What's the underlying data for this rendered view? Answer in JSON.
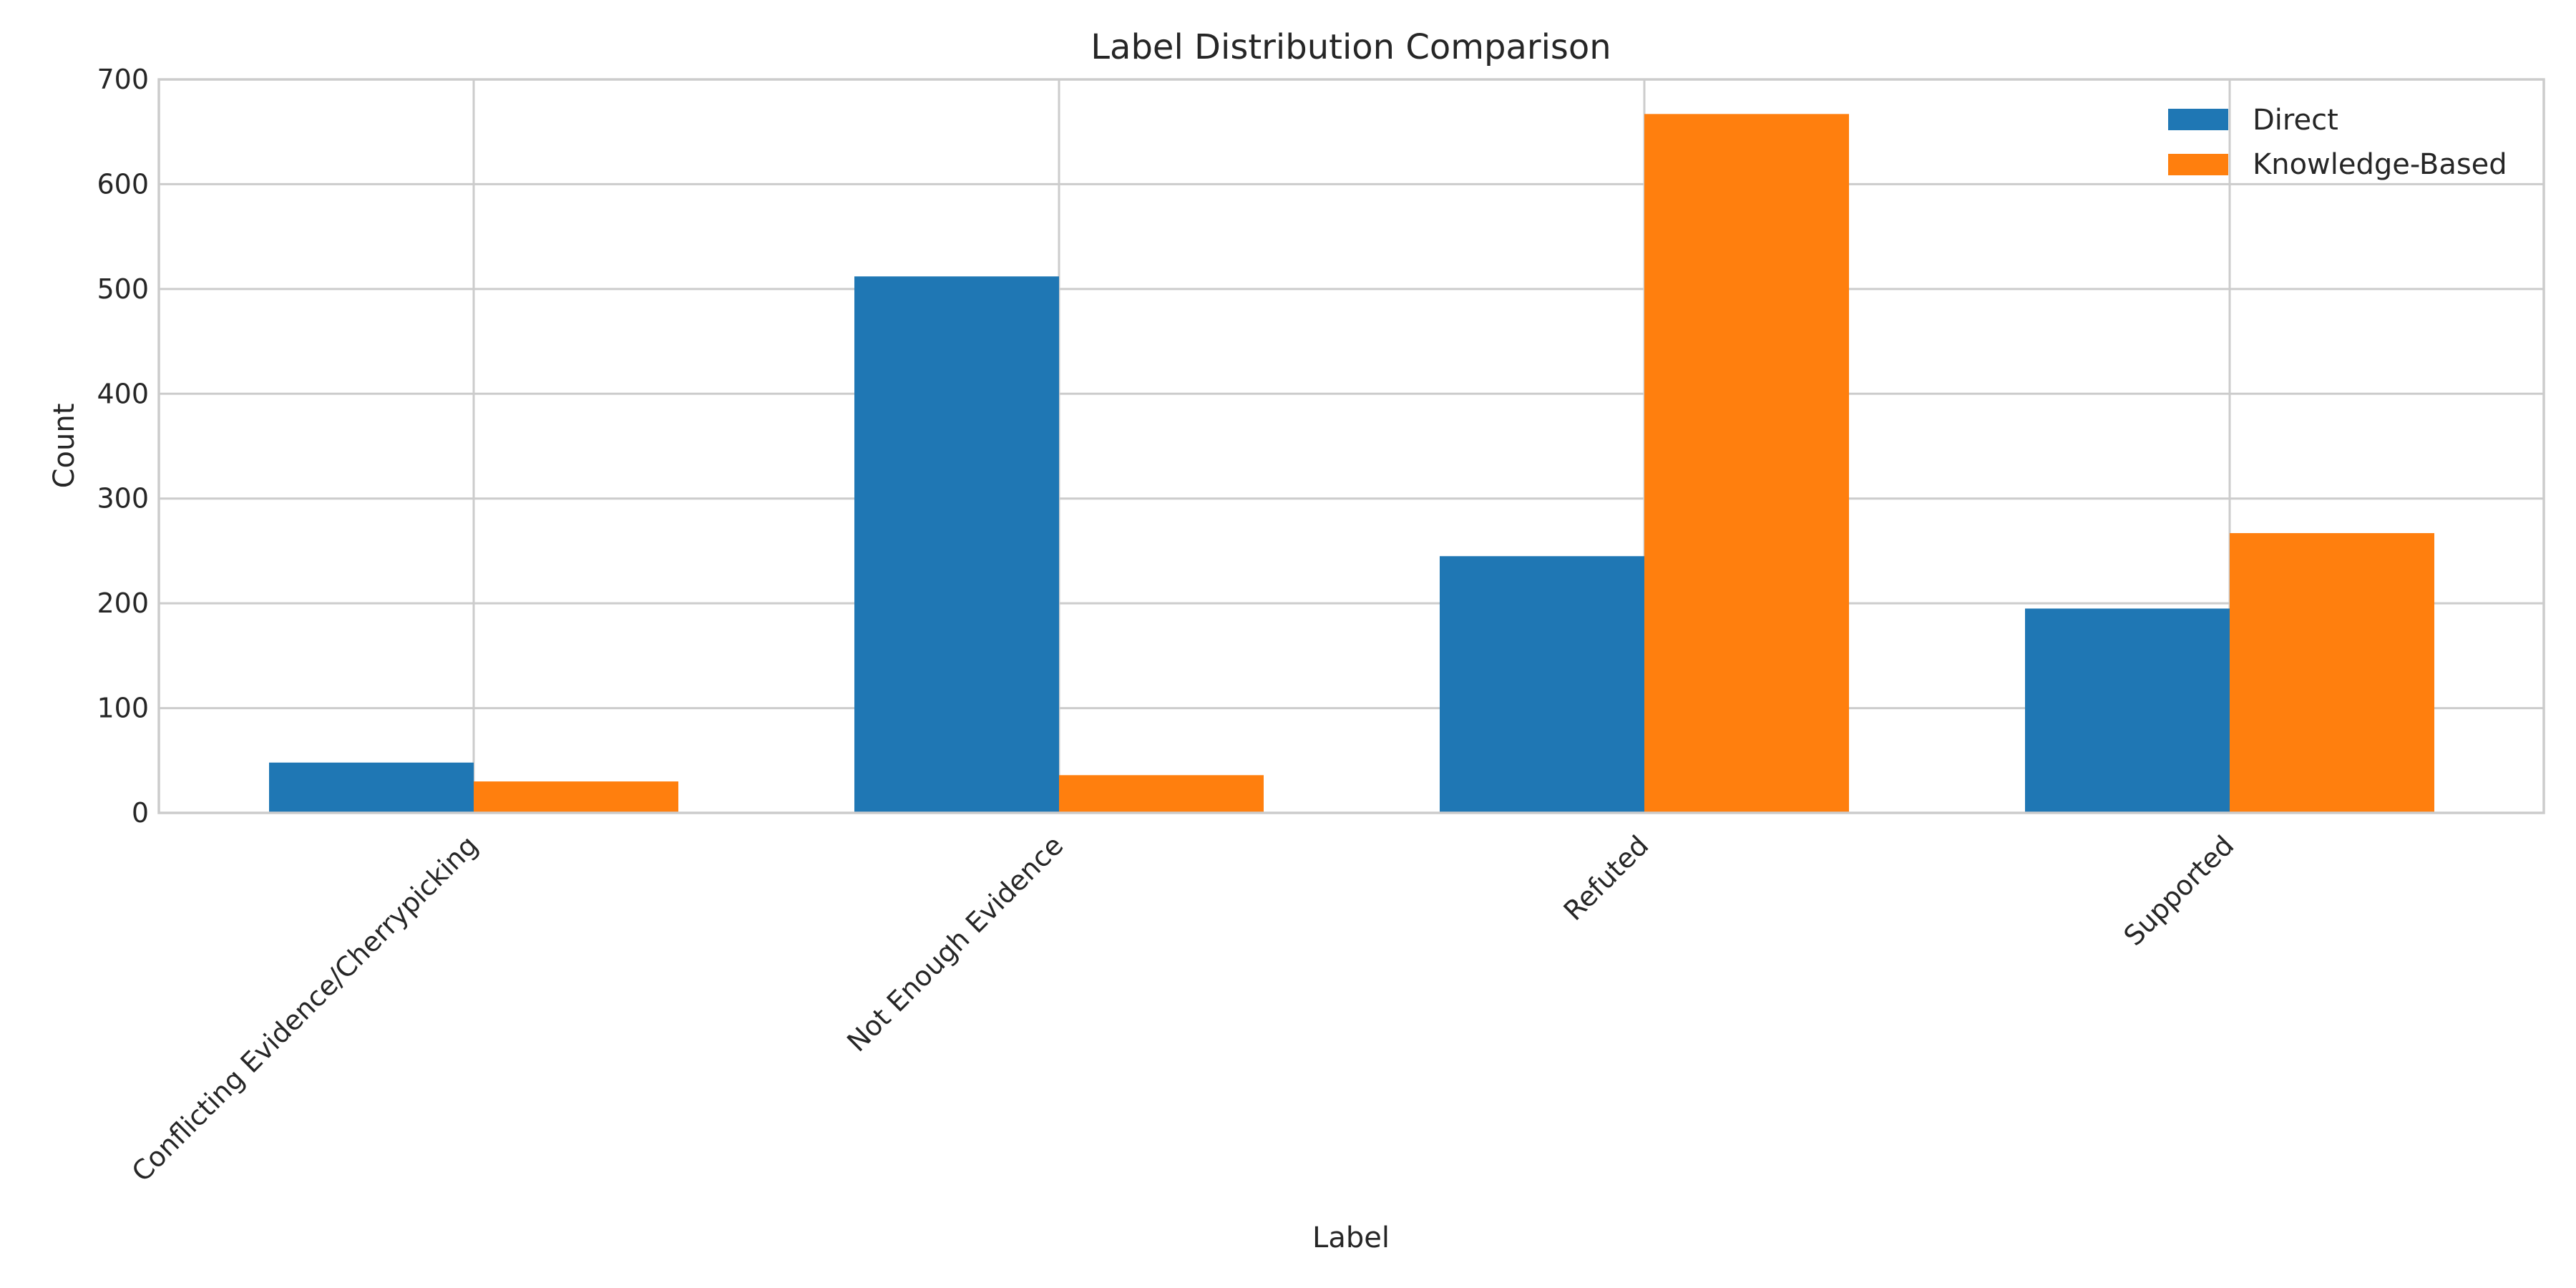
{
  "chart_data": {
    "type": "bar",
    "title": "Label Distribution Comparison",
    "xlabel": "Label",
    "ylabel": "Count",
    "categories": [
      "Conflicting Evidence/Cherrypicking",
      "Not Enough Evidence",
      "Refuted",
      "Supported"
    ],
    "series": [
      {
        "name": "Direct",
        "color": "#1f77b4",
        "values": [
          48,
          512,
          245,
          195
        ]
      },
      {
        "name": "Knowledge-Based",
        "color": "#ff7f0e",
        "values": [
          30,
          36,
          667,
          267
        ]
      }
    ],
    "ylim": [
      0,
      700
    ],
    "yticks": [
      0,
      100,
      200,
      300,
      400,
      500,
      600,
      700
    ],
    "grid": true,
    "legend_position": "top-right"
  }
}
